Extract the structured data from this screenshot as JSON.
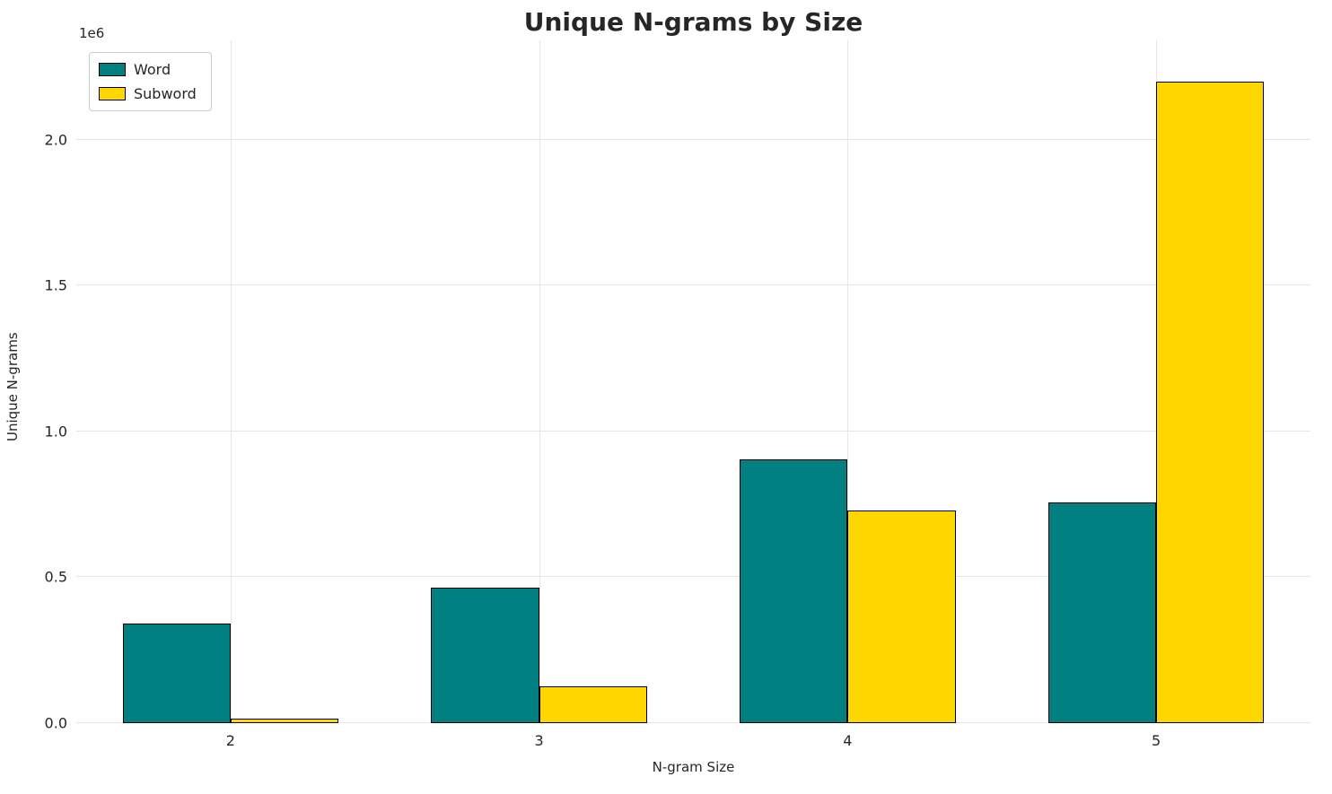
{
  "chart_data": {
    "type": "bar",
    "title": "Unique N-grams by Size",
    "xlabel": "N-gram Size",
    "ylabel": "Unique N-grams",
    "offset_text": "1e6",
    "categories": [
      "2",
      "3",
      "4",
      "5"
    ],
    "series": [
      {
        "name": "Word",
        "color": "#008080",
        "values": [
          340000,
          465000,
          905000,
          755000
        ]
      },
      {
        "name": "Subword",
        "color": "#FFD700",
        "values": [
          15000,
          125000,
          730000,
          2200000
        ]
      }
    ],
    "ylim": [
      0,
      2340000
    ],
    "yticks": [
      0,
      500000,
      1000000,
      1500000,
      2000000
    ],
    "ytick_labels": [
      "0.0",
      "0.5",
      "1.0",
      "1.5",
      "2.0"
    ],
    "grid": true,
    "legend_position": "upper-left",
    "bar_width_fraction": 0.35,
    "bar_edge_color": "#000000",
    "grid_color": "#e6e6e6"
  }
}
